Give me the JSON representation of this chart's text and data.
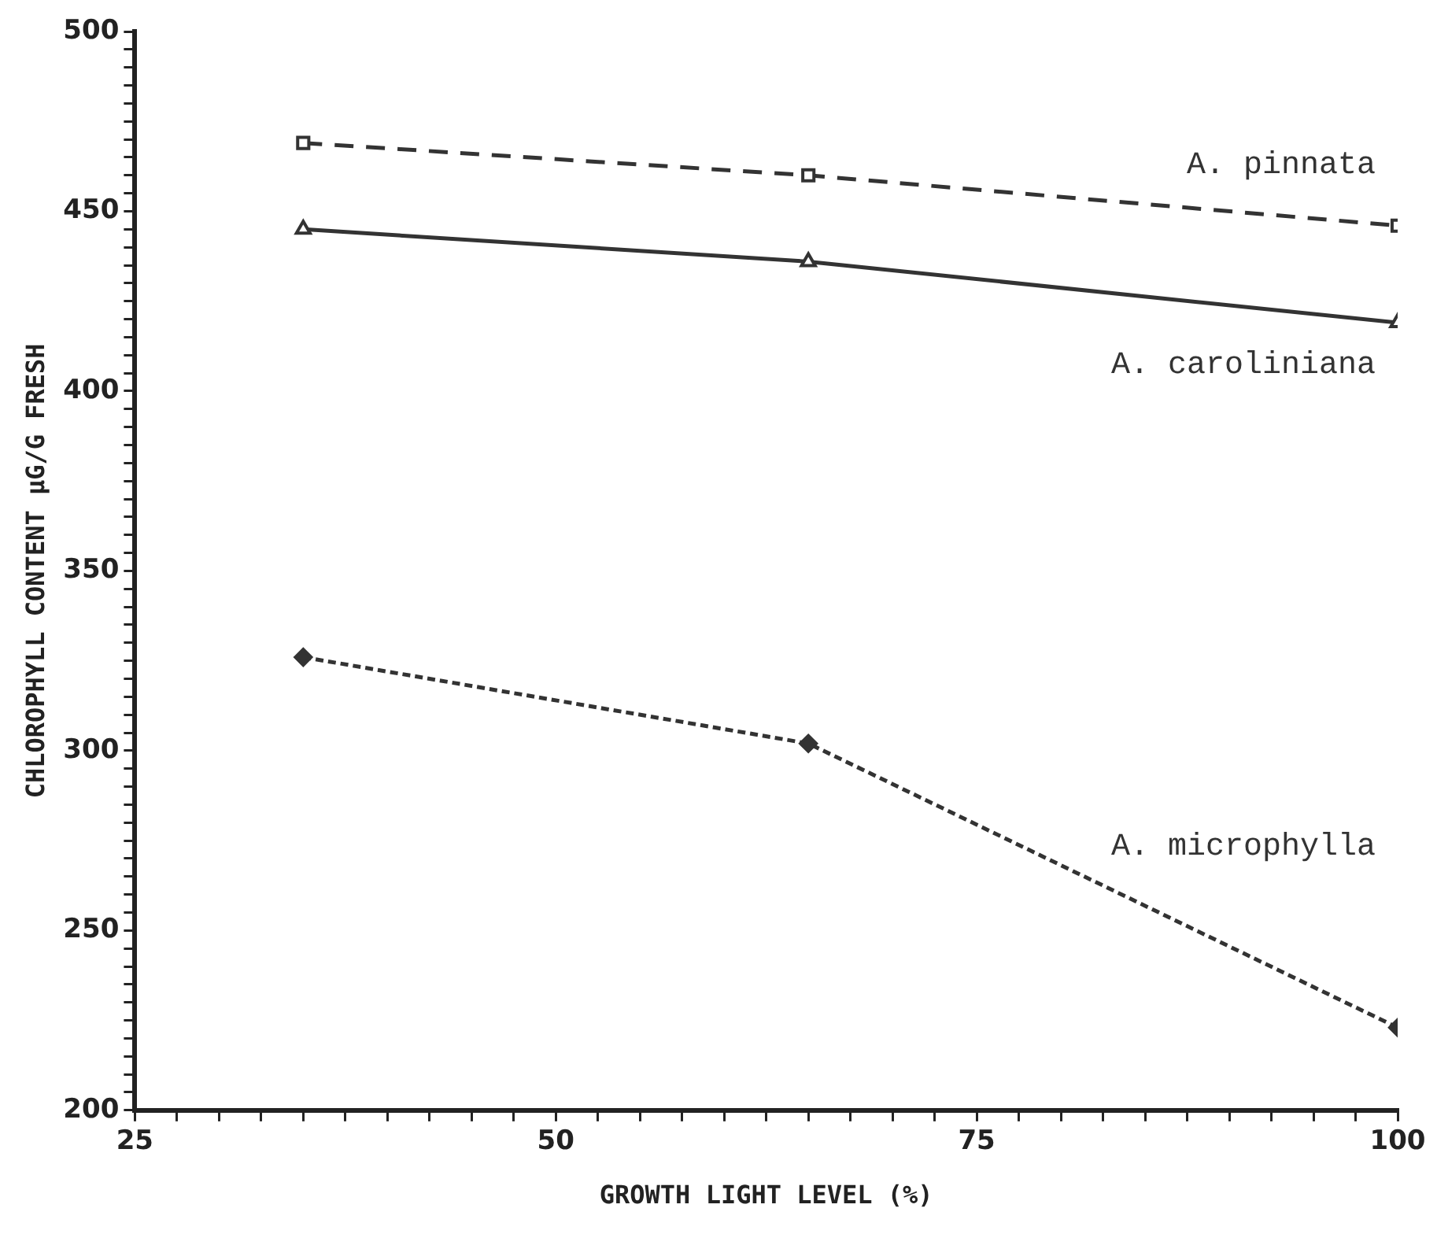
{
  "chart_data": {
    "type": "line",
    "xlabel": "GROWTH LIGHT LEVEL (%)",
    "ylabel": "CHLOROPHYLL CONTENT µG/G FRESH",
    "x": [
      35,
      65,
      100
    ],
    "series": [
      {
        "name": "A. pinnata",
        "color": "#333333",
        "values": [
          469,
          460,
          446
        ],
        "marker": "square",
        "line_style": "dashed"
      },
      {
        "name": "A. caroliniana",
        "color": "#333333",
        "values": [
          445,
          436,
          419
        ],
        "marker": "triangle",
        "line_style": "solid"
      },
      {
        "name": "A. microphylla",
        "color": "#333333",
        "values": [
          326,
          302,
          223
        ],
        "marker": "diamond",
        "line_style": "dotted"
      }
    ],
    "xlim": [
      25,
      100
    ],
    "ylim": [
      200,
      500
    ],
    "xticks": [
      25,
      {
        "value": 27.5,
        "label": null
      },
      {
        "value": 30,
        "label": null
      },
      {
        "value": 32.5,
        "label": null
      },
      {
        "value": 35,
        "label": null
      },
      {
        "value": 37.5,
        "label": null
      },
      {
        "value": 40,
        "label": null
      },
      {
        "value": 42.5,
        "label": null
      },
      {
        "value": 45,
        "label": null
      },
      {
        "value": 47.5,
        "label": null
      },
      50,
      {
        "value": 52.5,
        "label": null
      },
      {
        "value": 55,
        "label": null
      },
      {
        "value": 57.5,
        "label": null
      },
      {
        "value": 60,
        "label": null
      },
      {
        "value": 62.5,
        "label": null
      },
      {
        "value": 65,
        "label": null
      },
      {
        "value": 67.5,
        "label": null
      },
      {
        "value": 70,
        "label": null
      },
      {
        "value": 72.5,
        "label": null
      },
      75,
      {
        "value": 77.5,
        "label": null
      },
      {
        "value": 80,
        "label": null
      },
      {
        "value": 82.5,
        "label": null
      },
      {
        "value": 85,
        "label": null
      },
      {
        "value": 87.5,
        "label": null
      },
      {
        "value": 90,
        "label": null
      },
      {
        "value": 92.5,
        "label": null
      },
      {
        "value": 95,
        "label": null
      },
      {
        "value": 97.5,
        "label": null
      },
      100
    ],
    "yticks": [
      200,
      {
        "value": 205,
        "label": null
      },
      {
        "value": 210,
        "label": null
      },
      {
        "value": 215,
        "label": null
      },
      {
        "value": 220,
        "label": null
      },
      {
        "value": 225,
        "label": null
      },
      {
        "value": 230,
        "label": null
      },
      {
        "value": 235,
        "label": null
      },
      {
        "value": 240,
        "label": null
      },
      {
        "value": 245,
        "label": null
      },
      250,
      {
        "value": 255,
        "label": null
      },
      {
        "value": 260,
        "label": null
      },
      {
        "value": 265,
        "label": null
      },
      {
        "value": 270,
        "label": null
      },
      {
        "value": 275,
        "label": null
      },
      {
        "value": 280,
        "label": null
      },
      {
        "value": 285,
        "label": null
      },
      {
        "value": 290,
        "label": null
      },
      {
        "value": 295,
        "label": null
      },
      300,
      {
        "value": 305,
        "label": null
      },
      {
        "value": 310,
        "label": null
      },
      {
        "value": 315,
        "label": null
      },
      {
        "value": 320,
        "label": null
      },
      {
        "value": 325,
        "label": null
      },
      {
        "value": 330,
        "label": null
      },
      {
        "value": 335,
        "label": null
      },
      {
        "value": 340,
        "label": null
      },
      {
        "value": 345,
        "label": null
      },
      350,
      {
        "value": 355,
        "label": null
      },
      {
        "value": 360,
        "label": null
      },
      {
        "value": 365,
        "label": null
      },
      {
        "value": 370,
        "label": null
      },
      {
        "value": 375,
        "label": null
      },
      {
        "value": 380,
        "label": null
      },
      {
        "value": 385,
        "label": null
      },
      {
        "value": 390,
        "label": null
      },
      {
        "value": 395,
        "label": null
      },
      400,
      {
        "value": 405,
        "label": null
      },
      {
        "value": 410,
        "label": null
      },
      {
        "value": 415,
        "label": null
      },
      {
        "value": 420,
        "label": null
      },
      {
        "value": 425,
        "label": null
      },
      {
        "value": 430,
        "label": null
      },
      {
        "value": 435,
        "label": null
      },
      {
        "value": 440,
        "label": null
      },
      {
        "value": 445,
        "label": null
      },
      450,
      {
        "value": 455,
        "label": null
      },
      {
        "value": 460,
        "label": null
      },
      {
        "value": 465,
        "label": null
      },
      {
        "value": 470,
        "label": null
      },
      {
        "value": 475,
        "label": null
      },
      {
        "value": 480,
        "label": null
      },
      {
        "value": 485,
        "label": null
      },
      {
        "value": 490,
        "label": null
      },
      {
        "value": 495,
        "label": null
      },
      500
    ],
    "grid": false,
    "legend": false
  }
}
